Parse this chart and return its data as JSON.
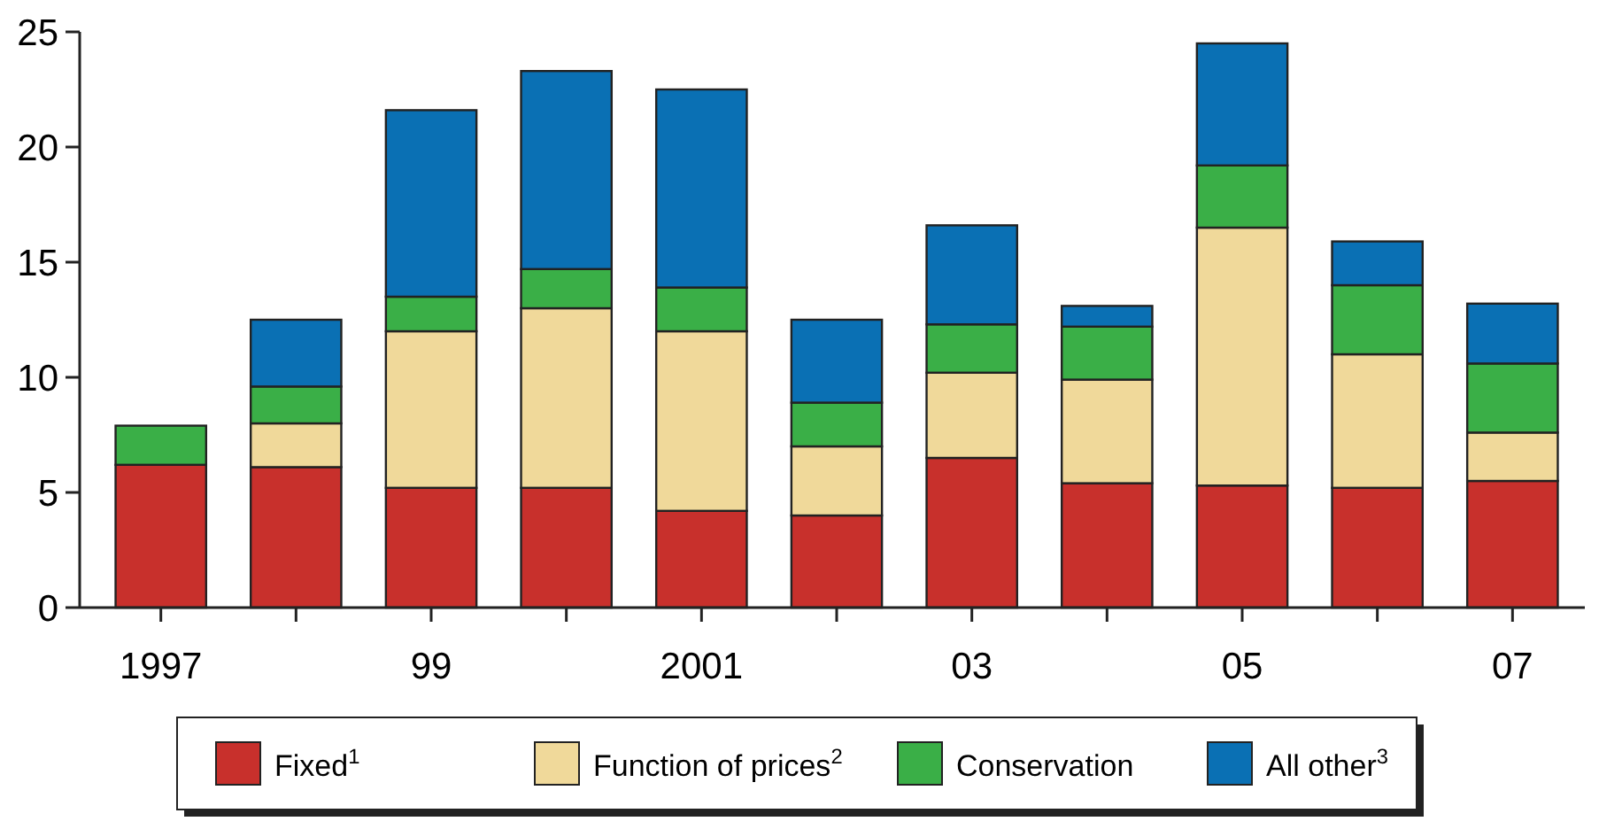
{
  "chart_data": {
    "type": "bar",
    "stacked": true,
    "categories": [
      "1997",
      null,
      "99",
      null,
      "2001",
      null,
      "03",
      null,
      "05",
      null,
      "07"
    ],
    "series": [
      {
        "name": "Fixed$^{1}$",
        "color": "#c8302c",
        "values": [
          6.2,
          6.1,
          5.2,
          5.2,
          4.2,
          4.0,
          6.5,
          5.4,
          5.3,
          5.2,
          5.5
        ]
      },
      {
        "name": "Function of prices$^{2}$",
        "color": "#f0d99a",
        "values": [
          null,
          1.9,
          6.8,
          7.8,
          7.8,
          3.0,
          3.7,
          4.5,
          11.2,
          5.8,
          2.1
        ]
      },
      {
        "name": "Conservation",
        "color": "#3aaf47",
        "values": [
          1.7,
          1.6,
          1.5,
          1.7,
          1.9,
          1.9,
          2.1,
          2.3,
          2.7,
          3.0,
          3.0
        ]
      },
      {
        "name": "All other$^{3}$",
        "color": "#0a70b4",
        "values": [
          null,
          2.9,
          8.1,
          8.6,
          8.6,
          3.6,
          4.3,
          0.9,
          5.3,
          1.9,
          2.6
        ]
      }
    ],
    "ylim": [
      0,
      25
    ],
    "yticks": [
      0,
      5,
      10,
      15,
      20,
      25
    ],
    "grid": false,
    "legend": "bottom"
  }
}
